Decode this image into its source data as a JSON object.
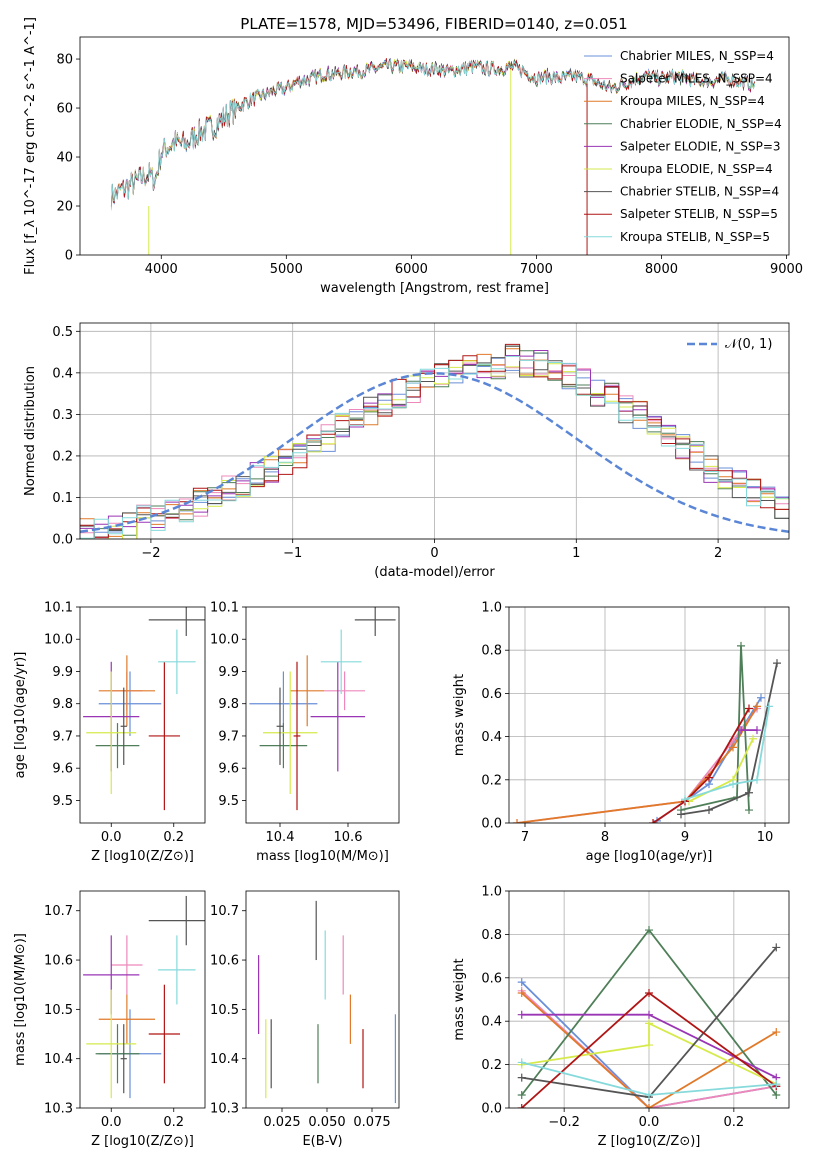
{
  "title": "PLATE=1578, MJD=53496, FIBERID=0140, z=0.051",
  "colors": {
    "Chabrier MILES": "#6a8fd8",
    "Salpeter MILES": "#ee88bb",
    "Kroupa MILES": "#e07a2a",
    "Chabrier ELODIE": "#4f7f58",
    "Salpeter ELODIE": "#9a35b5",
    "Kroupa ELODIE": "#d6ea4c",
    "Chabrier STELIB": "#555555",
    "Salpeter STELIB": "#b01515",
    "Kroupa STELIB": "#86dadb"
  },
  "chart_data": [
    {
      "type": "line",
      "name": "spectrum",
      "xlabel": "wavelength [Angstrom, rest frame]",
      "ylabel": "Flux [f_λ 10^-17 erg cm^-2 s^-1 A^-1]",
      "xlim": [
        3350,
        9020
      ],
      "ylim": [
        0,
        89
      ],
      "xticks": [
        "4000",
        "5000",
        "6000",
        "7000",
        "8000",
        "9000"
      ],
      "yticks": [
        "0",
        "20",
        "40",
        "60",
        "80"
      ],
      "grid": false,
      "legend_position": "right",
      "series": [
        {
          "name": "Chabrier MILES, N_SSP=4"
        },
        {
          "name": "Salpeter MILES, N_SSP=4"
        },
        {
          "name": "Kroupa MILES, N_SSP=4"
        },
        {
          "name": "Chabrier ELODIE, N_SSP=4"
        },
        {
          "name": "Salpeter ELODIE, N_SSP=3"
        },
        {
          "name": "Kroupa ELODIE, N_SSP=4"
        },
        {
          "name": "Chabrier STELIB, N_SSP=4"
        },
        {
          "name": "Salpeter STELIB, N_SSP=5"
        },
        {
          "name": "Kroupa STELIB, N_SSP=5"
        }
      ],
      "shape": {
        "x": [
          3600,
          3700,
          3800,
          3900,
          3950,
          4000,
          4100,
          4200,
          4300,
          4400,
          4500,
          4600,
          4700,
          4800,
          4900,
          5000,
          5100,
          5200,
          5300,
          5400,
          5500,
          5600,
          5700,
          5800,
          5900,
          6000,
          6100,
          6200,
          6300,
          6400,
          6500,
          6600,
          6700,
          6800,
          6900,
          7000,
          7100,
          7200,
          7300,
          7400,
          7500,
          7600,
          7700,
          7800,
          7900,
          8000,
          8100,
          8200,
          8300,
          8400,
          8500,
          8600,
          8700
        ],
        "y": [
          24,
          27,
          30,
          33,
          30,
          42,
          46,
          45,
          50,
          52,
          56,
          60,
          63,
          65,
          67,
          68,
          71,
          72,
          74,
          74,
          75,
          75,
          76,
          77,
          77,
          77,
          76,
          76,
          75,
          76,
          77,
          76,
          76,
          77,
          75,
          72,
          73,
          72,
          73,
          72,
          70,
          68,
          70,
          72,
          73,
          72,
          73,
          72,
          71,
          71,
          72,
          71,
          70
        ]
      }
    },
    {
      "type": "step",
      "name": "residual distribution",
      "xlabel": "(data-model)/error",
      "ylabel": "Normed distribution",
      "xlim": [
        -2.5,
        2.5
      ],
      "ylim": [
        0,
        0.52
      ],
      "xticks": [
        "−2",
        "−1",
        "0",
        "1",
        "2"
      ],
      "yticks": [
        "0.0",
        "0.1",
        "0.2",
        "0.3",
        "0.4",
        "0.5"
      ],
      "grid": true,
      "legend_position": "top-right",
      "legend": "𝒩(0, 1)",
      "bin_width": 0.1,
      "bin_start": -2.5,
      "histogram_values": [
        0.02,
        0.02,
        0.03,
        0.03,
        0.05,
        0.05,
        0.06,
        0.07,
        0.09,
        0.1,
        0.12,
        0.13,
        0.16,
        0.17,
        0.19,
        0.2,
        0.22,
        0.24,
        0.27,
        0.29,
        0.31,
        0.33,
        0.35,
        0.36,
        0.38,
        0.4,
        0.41,
        0.42,
        0.41,
        0.42,
        0.44,
        0.42,
        0.42,
        0.4,
        0.39,
        0.38,
        0.35,
        0.34,
        0.31,
        0.3,
        0.28,
        0.25,
        0.22,
        0.2,
        0.17,
        0.15,
        0.13,
        0.11,
        0.09,
        0.08
      ]
    },
    {
      "type": "errorbar",
      "name": "age vs Z",
      "xlabel": "Z [log10(Z/Z⊙)]",
      "ylabel": "age  [log10(age/yr)]",
      "xlim": [
        -0.1,
        0.3
      ],
      "ylim": [
        9.43,
        10.1
      ],
      "xticks": [
        "0.0",
        "0.2"
      ],
      "yticks": [
        "9.5",
        "9.6",
        "9.7",
        "9.8",
        "9.9",
        "10.0",
        "10.1"
      ],
      "points": [
        {
          "series": "Chabrier MILES",
          "x": 0.06,
          "y": 9.8,
          "xerr": 0.1,
          "yerr": 0.1
        },
        {
          "series": "Salpeter MILES",
          "x": 0.05,
          "y": 9.84,
          "xerr": 0.05,
          "yerr": 0.06
        },
        {
          "series": "Kroupa MILES",
          "x": 0.05,
          "y": 9.84,
          "xerr": 0.09,
          "yerr": 0.11
        },
        {
          "series": "Chabrier ELODIE",
          "x": 0.02,
          "y": 9.67,
          "xerr": 0.07,
          "yerr": 0.07
        },
        {
          "series": "Salpeter ELODIE",
          "x": 0.0,
          "y": 9.76,
          "xerr": 0.09,
          "yerr": 0.17
        },
        {
          "series": "Kroupa ELODIE",
          "x": 0.0,
          "y": 9.71,
          "xerr": 0.08,
          "yerr": 0.19
        },
        {
          "series": "Chabrier STELIB",
          "x": 0.04,
          "y": 9.73,
          "xerr": 0.01,
          "yerr": 0.12
        },
        {
          "series": "Salpeter STELIB",
          "x": 0.17,
          "y": 9.7,
          "xerr": 0.05,
          "yerr": 0.23
        },
        {
          "series": "Kroupa STELIB",
          "x": 0.21,
          "y": 9.93,
          "xerr": 0.06,
          "yerr": 0.1
        },
        {
          "series": "Chabrier STELIB",
          "x": 0.24,
          "y": 10.06,
          "xerr": 0.12,
          "yerr": 0.05
        }
      ]
    },
    {
      "type": "errorbar",
      "name": "age vs mass",
      "xlabel": "mass [log10(M/M⊙)]",
      "ylabel": "",
      "xlim": [
        10.3,
        10.75
      ],
      "ylim": [
        9.43,
        10.1
      ],
      "xticks": [
        "10.4",
        "10.6"
      ],
      "yticks": [
        "9.5",
        "9.6",
        "9.7",
        "9.8",
        "9.9",
        "10.0",
        "10.1"
      ],
      "points": [
        {
          "series": "Chabrier MILES",
          "x": 10.41,
          "y": 9.8,
          "xerr": 0.1,
          "yerr": 0.1
        },
        {
          "series": "Salpeter MILES",
          "x": 10.59,
          "y": 9.84,
          "xerr": 0.06,
          "yerr": 0.06
        },
        {
          "series": "Kroupa MILES",
          "x": 10.48,
          "y": 9.84,
          "xerr": 0.05,
          "yerr": 0.11
        },
        {
          "series": "Chabrier ELODIE",
          "x": 10.41,
          "y": 9.67,
          "xerr": 0.07,
          "yerr": 0.07
        },
        {
          "series": "Salpeter ELODIE",
          "x": 10.57,
          "y": 9.76,
          "xerr": 0.08,
          "yerr": 0.17
        },
        {
          "series": "Kroupa ELODIE",
          "x": 10.43,
          "y": 9.71,
          "xerr": 0.08,
          "yerr": 0.19
        },
        {
          "series": "Chabrier STELIB",
          "x": 10.4,
          "y": 9.73,
          "xerr": 0.01,
          "yerr": 0.12
        },
        {
          "series": "Salpeter STELIB",
          "x": 10.45,
          "y": 9.7,
          "xerr": 0.01,
          "yerr": 0.23
        },
        {
          "series": "Kroupa STELIB",
          "x": 10.58,
          "y": 9.93,
          "xerr": 0.06,
          "yerr": 0.1
        },
        {
          "series": "Chabrier STELIB",
          "x": 10.68,
          "y": 10.06,
          "xerr": 0.06,
          "yerr": 0.05
        }
      ]
    },
    {
      "type": "line",
      "name": "mass weight vs age",
      "xlabel": "age  [log10(age/yr)]",
      "ylabel": "mass weight",
      "xlim": [
        6.8,
        10.3
      ],
      "ylim": [
        0,
        1
      ],
      "xticks": [
        "7",
        "8",
        "9",
        "10"
      ],
      "yticks": [
        "0.0",
        "0.2",
        "0.4",
        "0.6",
        "0.8",
        "1.0"
      ],
      "grid": true,
      "series": [
        {
          "name": "Chabrier MILES",
          "x": [
            8.65,
            9.3,
            9.7,
            9.95
          ],
          "y": [
            0.01,
            0.18,
            0.43,
            0.58
          ]
        },
        {
          "name": "Salpeter MILES",
          "x": [
            6.9,
            9.0,
            9.6,
            9.9
          ],
          "y": [
            0.0,
            0.1,
            0.38,
            0.53
          ]
        },
        {
          "name": "Kroupa MILES",
          "x": [
            6.9,
            9.0,
            9.6,
            9.9
          ],
          "y": [
            0.0,
            0.1,
            0.35,
            0.54
          ]
        },
        {
          "name": "Chabrier ELODIE",
          "x": [
            8.95,
            9.65,
            9.7,
            9.8
          ],
          "y": [
            0.06,
            0.12,
            0.82,
            0.06
          ]
        },
        {
          "name": "Salpeter ELODIE",
          "x": [
            9.7,
            9.9
          ],
          "y": [
            0.43,
            0.43
          ]
        },
        {
          "name": "Kroupa ELODIE",
          "x": [
            9.05,
            9.6,
            9.85
          ],
          "y": [
            0.1,
            0.2,
            0.39
          ]
        },
        {
          "name": "Chabrier STELIB",
          "x": [
            8.95,
            9.3,
            9.8,
            10.15
          ],
          "y": [
            0.04,
            0.06,
            0.14,
            0.74
          ]
        },
        {
          "name": "Salpeter STELIB",
          "x": [
            8.6,
            9.0,
            9.3,
            9.8
          ],
          "y": [
            0.0,
            0.1,
            0.21,
            0.53
          ]
        },
        {
          "name": "Kroupa STELIB",
          "x": [
            9.0,
            9.6,
            9.9,
            10.05
          ],
          "y": [
            0.11,
            0.18,
            0.2,
            0.54
          ]
        }
      ]
    },
    {
      "type": "errorbar",
      "name": "mass vs Z",
      "xlabel": "Z [log10(Z/Z⊙)]",
      "ylabel": "mass [log10(M/M⊙)]",
      "xlim": [
        -0.1,
        0.3
      ],
      "ylim": [
        10.3,
        10.74
      ],
      "xticks": [
        "0.0",
        "0.2"
      ],
      "yticks": [
        "10.3",
        "10.4",
        "10.5",
        "10.6",
        "10.7"
      ],
      "points": [
        {
          "series": "Chabrier MILES",
          "x": 0.06,
          "y": 10.41,
          "xerr": 0.1,
          "yerr": 0.09
        },
        {
          "series": "Salpeter MILES",
          "x": 0.05,
          "y": 10.59,
          "xerr": 0.05,
          "yerr": 0.06
        },
        {
          "series": "Kroupa MILES",
          "x": 0.05,
          "y": 10.48,
          "xerr": 0.09,
          "yerr": 0.05
        },
        {
          "series": "Chabrier ELODIE",
          "x": 0.02,
          "y": 10.41,
          "xerr": 0.07,
          "yerr": 0.06
        },
        {
          "series": "Salpeter ELODIE",
          "x": 0.0,
          "y": 10.57,
          "xerr": 0.09,
          "yerr": 0.08
        },
        {
          "series": "Kroupa ELODIE",
          "x": 0.0,
          "y": 10.43,
          "xerr": 0.08,
          "yerr": 0.11
        },
        {
          "series": "Chabrier STELIB",
          "x": 0.04,
          "y": 10.4,
          "xerr": 0.01,
          "yerr": 0.07
        },
        {
          "series": "Salpeter STELIB",
          "x": 0.17,
          "y": 10.45,
          "xerr": 0.05,
          "yerr": 0.1
        },
        {
          "series": "Kroupa STELIB",
          "x": 0.21,
          "y": 10.58,
          "xerr": 0.06,
          "yerr": 0.07
        },
        {
          "series": "Chabrier STELIB",
          "x": 0.24,
          "y": 10.68,
          "xerr": 0.12,
          "yerr": 0.05
        }
      ]
    },
    {
      "type": "errorbar",
      "name": "mass vs E(B-V)",
      "xlabel": "E(B-V)",
      "ylabel": "",
      "xlim": [
        0.005,
        0.09
      ],
      "ylim": [
        10.3,
        10.74
      ],
      "xticks": [
        "0.025",
        "0.050",
        "0.075"
      ],
      "yticks": [
        "10.3",
        "10.4",
        "10.5",
        "10.6",
        "10.7"
      ],
      "points": [
        {
          "series": "Chabrier MILES",
          "x": 0.088,
          "y": 10.4,
          "xerr": 0,
          "yerr": 0.09
        },
        {
          "series": "Salpeter MILES",
          "x": 0.059,
          "y": 10.59,
          "xerr": 0,
          "yerr": 0.06
        },
        {
          "series": "Kroupa MILES",
          "x": 0.063,
          "y": 10.48,
          "xerr": 0,
          "yerr": 0.05
        },
        {
          "series": "Chabrier ELODIE",
          "x": 0.045,
          "y": 10.41,
          "xerr": 0,
          "yerr": 0.06
        },
        {
          "series": "Salpeter ELODIE",
          "x": 0.012,
          "y": 10.53,
          "xerr": 0,
          "yerr": 0.08
        },
        {
          "series": "Kroupa ELODIE",
          "x": 0.016,
          "y": 10.4,
          "xerr": 0,
          "yerr": 0.08
        },
        {
          "series": "Chabrier STELIB",
          "x": 0.044,
          "y": 10.66,
          "xerr": 0,
          "yerr": 0.06
        },
        {
          "series": "Salpeter STELIB",
          "x": 0.07,
          "y": 10.4,
          "xerr": 0,
          "yerr": 0.06
        },
        {
          "series": "Kroupa STELIB",
          "x": 0.049,
          "y": 10.59,
          "xerr": 0,
          "yerr": 0.07
        },
        {
          "series": "Chabrier STELIB",
          "x": 0.019,
          "y": 10.41,
          "xerr": 0,
          "yerr": 0.07
        }
      ]
    },
    {
      "type": "line",
      "name": "mass weight vs Z",
      "xlabel": "Z [log10(Z/Z⊙)]",
      "ylabel": "mass weight",
      "xlim": [
        -0.33,
        0.33
      ],
      "ylim": [
        0,
        1
      ],
      "xticks": [
        "−0.2",
        "0.0",
        "0.2"
      ],
      "yticks": [
        "0.0",
        "0.2",
        "0.4",
        "0.6",
        "0.8",
        "1.0"
      ],
      "grid": true,
      "series": [
        {
          "name": "Chabrier MILES",
          "x": [
            -0.3,
            0.0,
            0.3
          ],
          "y": [
            0.58,
            0.0,
            0.1
          ]
        },
        {
          "name": "Salpeter MILES",
          "x": [
            -0.3,
            0.0,
            0.3
          ],
          "y": [
            0.54,
            0.0,
            0.1
          ]
        },
        {
          "name": "Kroupa MILES",
          "x": [
            -0.3,
            0.0,
            0.3
          ],
          "y": [
            0.53,
            0.0,
            0.35
          ]
        },
        {
          "name": "Chabrier ELODIE",
          "x": [
            -0.3,
            0.0,
            0.3
          ],
          "y": [
            0.06,
            0.82,
            0.06
          ]
        },
        {
          "name": "Salpeter ELODIE",
          "x": [
            -0.3,
            0.0,
            0.3
          ],
          "y": [
            0.43,
            0.43,
            0.14
          ]
        },
        {
          "name": "Kroupa ELODIE",
          "x": [
            -0.3,
            0.0,
            0.0,
            0.3
          ],
          "y": [
            0.2,
            0.29,
            0.39,
            0.11
          ]
        },
        {
          "name": "Chabrier STELIB",
          "x": [
            -0.3,
            0.0,
            0.3
          ],
          "y": [
            0.14,
            0.05,
            0.74
          ]
        },
        {
          "name": "Salpeter STELIB",
          "x": [
            -0.3,
            0.0,
            0.3
          ],
          "y": [
            0.0,
            0.53,
            0.1
          ]
        },
        {
          "name": "Kroupa STELIB",
          "x": [
            -0.3,
            0.0,
            0.3
          ],
          "y": [
            0.21,
            0.06,
            0.11
          ]
        }
      ]
    }
  ]
}
